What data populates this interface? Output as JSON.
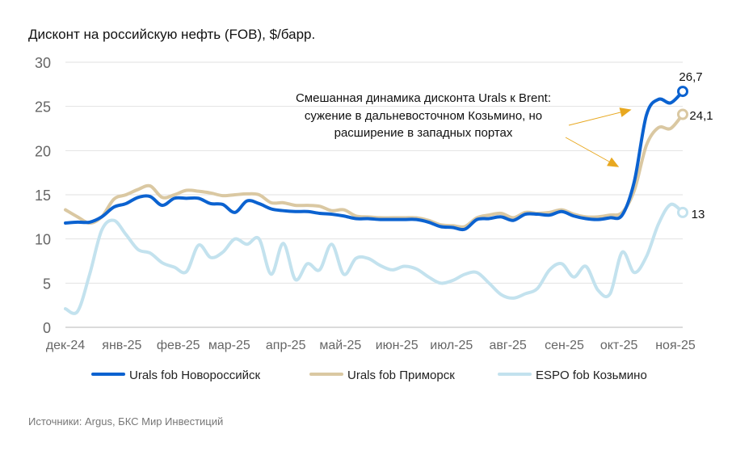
{
  "chart_data": {
    "type": "line",
    "title": "Дисконт на российскую нефть (FOB), $/барр.",
    "xlim": [
      "2024-12-01",
      "2025-11-05"
    ],
    "x_tick_labels": [
      "дек-24",
      "янв-25",
      "фев-25",
      "мар-25",
      "апр-25",
      "май-25",
      "июн-25",
      "июл-25",
      "авг-25",
      "сен-25",
      "окт-25",
      "ноя-25"
    ],
    "x_tick_dates": [
      "2024-12-01",
      "2025-01-01",
      "2025-02-01",
      "2025-03-01",
      "2025-04-01",
      "2025-05-01",
      "2025-06-01",
      "2025-07-01",
      "2025-08-01",
      "2025-09-01",
      "2025-10-01",
      "2025-11-01"
    ],
    "ylim": [
      0,
      30
    ],
    "y_ticks": [
      0,
      5,
      10,
      15,
      20,
      25,
      30
    ],
    "grid": true,
    "legend_position": "bottom",
    "series": [
      {
        "name": "Urals fob Новороссийск",
        "color": "#0b62d0",
        "end_label": "26,7",
        "values": [
          11.8,
          11.9,
          11.9,
          12.5,
          13.6,
          14.0,
          14.7,
          14.8,
          13.8,
          14.6,
          14.6,
          14.6,
          14.0,
          13.9,
          13.0,
          14.3,
          14.0,
          13.4,
          13.2,
          13.1,
          13.1,
          12.9,
          12.8,
          12.6,
          12.3,
          12.3,
          12.2,
          12.2,
          12.2,
          12.2,
          11.9,
          11.4,
          11.3,
          11.1,
          12.2,
          12.3,
          12.5,
          12.1,
          12.8,
          12.8,
          12.7,
          13.1,
          12.6,
          12.3,
          12.2,
          12.4,
          12.7,
          16.5,
          24.0,
          25.8,
          25.4,
          26.7
        ]
      },
      {
        "name": "Urals fob Приморск",
        "color": "#dac8a2",
        "end_label": "24,1",
        "values": [
          13.3,
          12.5,
          11.8,
          12.5,
          14.5,
          15.0,
          15.6,
          16.0,
          14.7,
          15.0,
          15.5,
          15.4,
          15.2,
          14.9,
          15.0,
          15.1,
          15.0,
          14.1,
          14.1,
          13.8,
          13.8,
          13.7,
          13.2,
          13.3,
          12.6,
          12.5,
          12.4,
          12.4,
          12.4,
          12.4,
          12.1,
          11.6,
          11.5,
          11.4,
          12.4,
          12.7,
          12.9,
          12.4,
          13.0,
          12.9,
          13.0,
          13.3,
          12.8,
          12.5,
          12.5,
          12.7,
          13.0,
          15.5,
          20.6,
          22.6,
          22.5,
          24.1
        ]
      },
      {
        "name": "ESPO fob Козьмино",
        "color": "#c3e2ee",
        "end_label": "13",
        "values": [
          2.1,
          1.8,
          6.0,
          11.0,
          12.1,
          10.5,
          8.8,
          8.4,
          7.3,
          6.8,
          6.3,
          9.3,
          7.9,
          8.5,
          10.0,
          9.4,
          10.0,
          6.0,
          9.5,
          5.4,
          7.2,
          6.5,
          9.4,
          6.0,
          7.8,
          7.8,
          7.0,
          6.5,
          6.9,
          6.6,
          5.7,
          5.0,
          5.3,
          6.0,
          6.2,
          5.0,
          3.7,
          3.3,
          3.8,
          4.4,
          6.5,
          7.2,
          5.7,
          6.9,
          4.2,
          3.8,
          8.5,
          6.2,
          8.0,
          11.7,
          13.9,
          13.0
        ]
      }
    ],
    "annotation": {
      "lines": [
        "Смешанная динамика дисконта Urals к Brent:",
        "сужение в дальневосточном Козьмино, но",
        "расширение в западных портах"
      ],
      "arrow_color": "#e8a820"
    },
    "source": "Источники: Argus, БКС Мир Инвестиций"
  }
}
